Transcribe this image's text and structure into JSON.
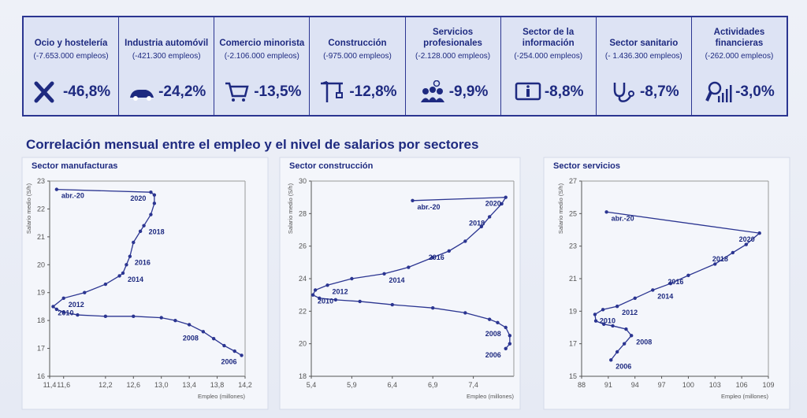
{
  "header_boxes": [
    {
      "title": "Ocio y hostelería",
      "employment": "(-7.653.000 empleos)",
      "change": "-46,8%"
    },
    {
      "title": "Industria automóvil",
      "employment": "(-421.300 empleos)",
      "change": "-24,2%"
    },
    {
      "title": "Comercio minorista",
      "employment": "(-2.106.000 empleos)",
      "change": "-13,5%"
    },
    {
      "title": "Construcción",
      "employment": "(-975.000 empleos)",
      "change": "-12,8%"
    },
    {
      "title": "Servicios profesionales",
      "employment": "(-2.128.000 empleos)",
      "change": "-9,9%"
    },
    {
      "title": "Sector de la información",
      "employment": "(-254.000 empleos)",
      "change": "-8,8%"
    },
    {
      "title": "Sector sanitario",
      "employment": "(- 1.436.300 empleos)",
      "change": "-8,7%"
    },
    {
      "title": "Actividades financieras",
      "employment": "(-262.000 empleos)",
      "change": "-3,0%"
    }
  ],
  "heading": "Correlación mensual entre el empleo y el nivel de salarios por sectores",
  "chart_data": [
    {
      "type": "line",
      "title": "Sector manufacturas",
      "xlabel": "Empleo (millones)",
      "ylabel": "Salario medio (S/h)",
      "xlim": [
        11.4,
        14.2
      ],
      "ylim": [
        16,
        23
      ],
      "xticks": [
        {
          "value": 11.4,
          "label": "11,4"
        },
        {
          "value": 11.6,
          "label": "11,6"
        },
        {
          "value": 12.2,
          "label": "12,2"
        },
        {
          "value": 12.6,
          "label": "12,6"
        },
        {
          "value": 13.0,
          "label": "13,0"
        },
        {
          "value": 13.4,
          "label": "13,4"
        },
        {
          "value": 13.8,
          "label": "13,8"
        },
        {
          "value": 14.2,
          "label": "14,2"
        }
      ],
      "yticks": [
        16,
        17,
        18,
        19,
        20,
        21,
        22,
        23
      ],
      "series": [
        {
          "color": "#2b3591",
          "x": [
            14.15,
            14.05,
            13.9,
            13.75,
            13.6,
            13.4,
            13.2,
            13.0,
            12.6,
            12.2,
            11.8,
            11.6,
            11.5,
            11.45,
            11.6,
            11.9,
            12.2,
            12.4,
            12.45,
            12.5,
            12.55,
            12.6,
            12.7,
            12.75,
            12.85,
            12.9,
            12.9,
            12.85,
            11.5
          ],
          "values": [
            16.75,
            16.9,
            17.1,
            17.35,
            17.6,
            17.85,
            18.0,
            18.1,
            18.15,
            18.15,
            18.2,
            18.3,
            18.4,
            18.5,
            18.8,
            19.0,
            19.3,
            19.6,
            19.7,
            20.0,
            20.3,
            20.8,
            21.2,
            21.4,
            21.8,
            22.2,
            22.5,
            22.6,
            22.7
          ],
          "point_labels": [
            "2006",
            null,
            null,
            null,
            "2008",
            null,
            null,
            null,
            null,
            null,
            null,
            null,
            null,
            "2010",
            "2012",
            null,
            null,
            null,
            "2014",
            null,
            "2016",
            null,
            null,
            "2018",
            null,
            null,
            null,
            "2020",
            "abr.-20"
          ]
        }
      ]
    },
    {
      "type": "line",
      "title": "Sector construcción",
      "xlabel": "Empleo (millones)",
      "ylabel": "Salario medio (S/h)",
      "xlim": [
        5.4,
        7.9
      ],
      "ylim": [
        18,
        30
      ],
      "xticks": [
        {
          "value": 5.4,
          "label": "5,4"
        },
        {
          "value": 5.9,
          "label": "5,9"
        },
        {
          "value": 6.4,
          "label": "6,4"
        },
        {
          "value": 6.9,
          "label": "6,9"
        },
        {
          "value": 7.4,
          "label": "7,4"
        }
      ],
      "yticks": [
        18,
        20,
        22,
        24,
        26,
        28,
        30
      ],
      "series": [
        {
          "color": "#2b3591",
          "x": [
            7.8,
            7.85,
            7.85,
            7.8,
            7.7,
            7.6,
            7.3,
            6.9,
            6.4,
            6.0,
            5.7,
            5.5,
            5.42,
            5.45,
            5.6,
            5.9,
            6.3,
            6.6,
            6.9,
            7.1,
            7.3,
            7.5,
            7.6,
            7.75,
            7.8,
            6.65
          ],
          "values": [
            19.7,
            20.0,
            20.5,
            21.0,
            21.3,
            21.5,
            21.9,
            22.2,
            22.4,
            22.6,
            22.7,
            22.8,
            23.0,
            23.3,
            23.6,
            24.0,
            24.3,
            24.7,
            25.3,
            25.7,
            26.3,
            27.2,
            27.8,
            28.6,
            29.0,
            28.8
          ],
          "point_labels": [
            "2006",
            null,
            null,
            "2008",
            null,
            null,
            null,
            null,
            null,
            null,
            null,
            null,
            "2010",
            null,
            "2012",
            null,
            "2014",
            null,
            null,
            "2016",
            null,
            null,
            "2018",
            null,
            "2020",
            "abr.-20"
          ]
        }
      ]
    },
    {
      "type": "line",
      "title": "Sector servicios",
      "xlabel": "Empleo (millones)",
      "ylabel": "Salario medio (S/h)",
      "xlim": [
        88,
        109
      ],
      "ylim": [
        15,
        27
      ],
      "xticks": [
        88,
        91,
        94,
        97,
        100,
        103,
        106,
        109
      ],
      "yticks": [
        15,
        17,
        19,
        21,
        23,
        25,
        27
      ],
      "series": [
        {
          "color": "#2b3591",
          "x": [
            91.3,
            92,
            92.8,
            93.6,
            93,
            91.5,
            90.5,
            89.6,
            89.5,
            90.4,
            92,
            94,
            96,
            98,
            100,
            103,
            105,
            106.5,
            108,
            90.8
          ],
          "values": [
            16.0,
            16.5,
            17.0,
            17.5,
            17.9,
            18.1,
            18.2,
            18.4,
            18.8,
            19.1,
            19.3,
            19.8,
            20.3,
            20.7,
            21.2,
            21.9,
            22.6,
            23.1,
            23.8,
            25.1
          ],
          "point_labels": [
            "2006",
            null,
            null,
            "2008",
            null,
            null,
            null,
            null,
            "2010",
            null,
            "2012",
            null,
            "2014",
            null,
            "2016",
            null,
            "2018",
            null,
            "2020",
            "abr.-20"
          ]
        }
      ]
    }
  ]
}
